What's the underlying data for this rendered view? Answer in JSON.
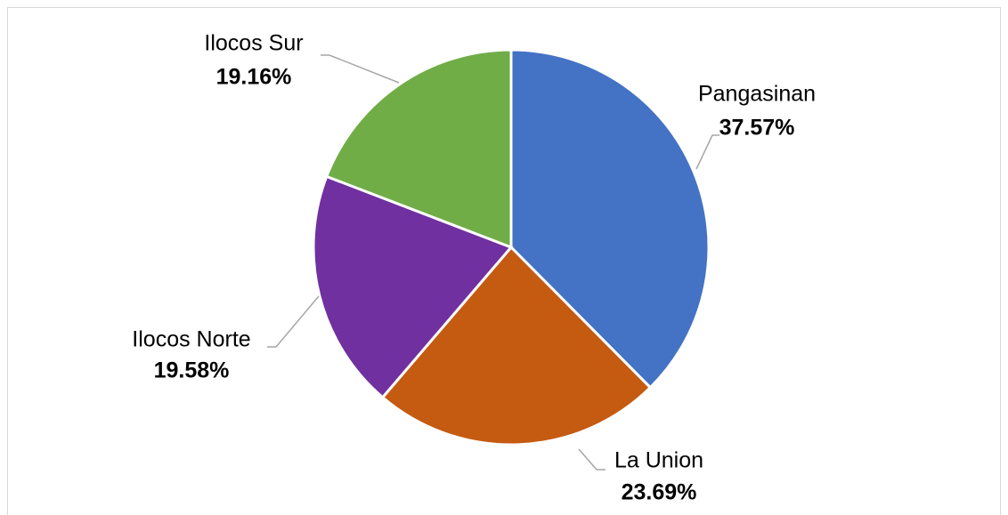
{
  "chart_data": {
    "type": "pie",
    "categories": [
      "Pangasinan",
      "La Union",
      "Ilocos Norte",
      "Ilocos Sur"
    ],
    "values": [
      37.57,
      23.69,
      19.58,
      19.16
    ],
    "value_labels": [
      "37.57%",
      "23.69%",
      "19.58%",
      "19.16%"
    ],
    "colors": [
      "#4472c4",
      "#c55a11",
      "#7030a0",
      "#70ad47"
    ]
  }
}
